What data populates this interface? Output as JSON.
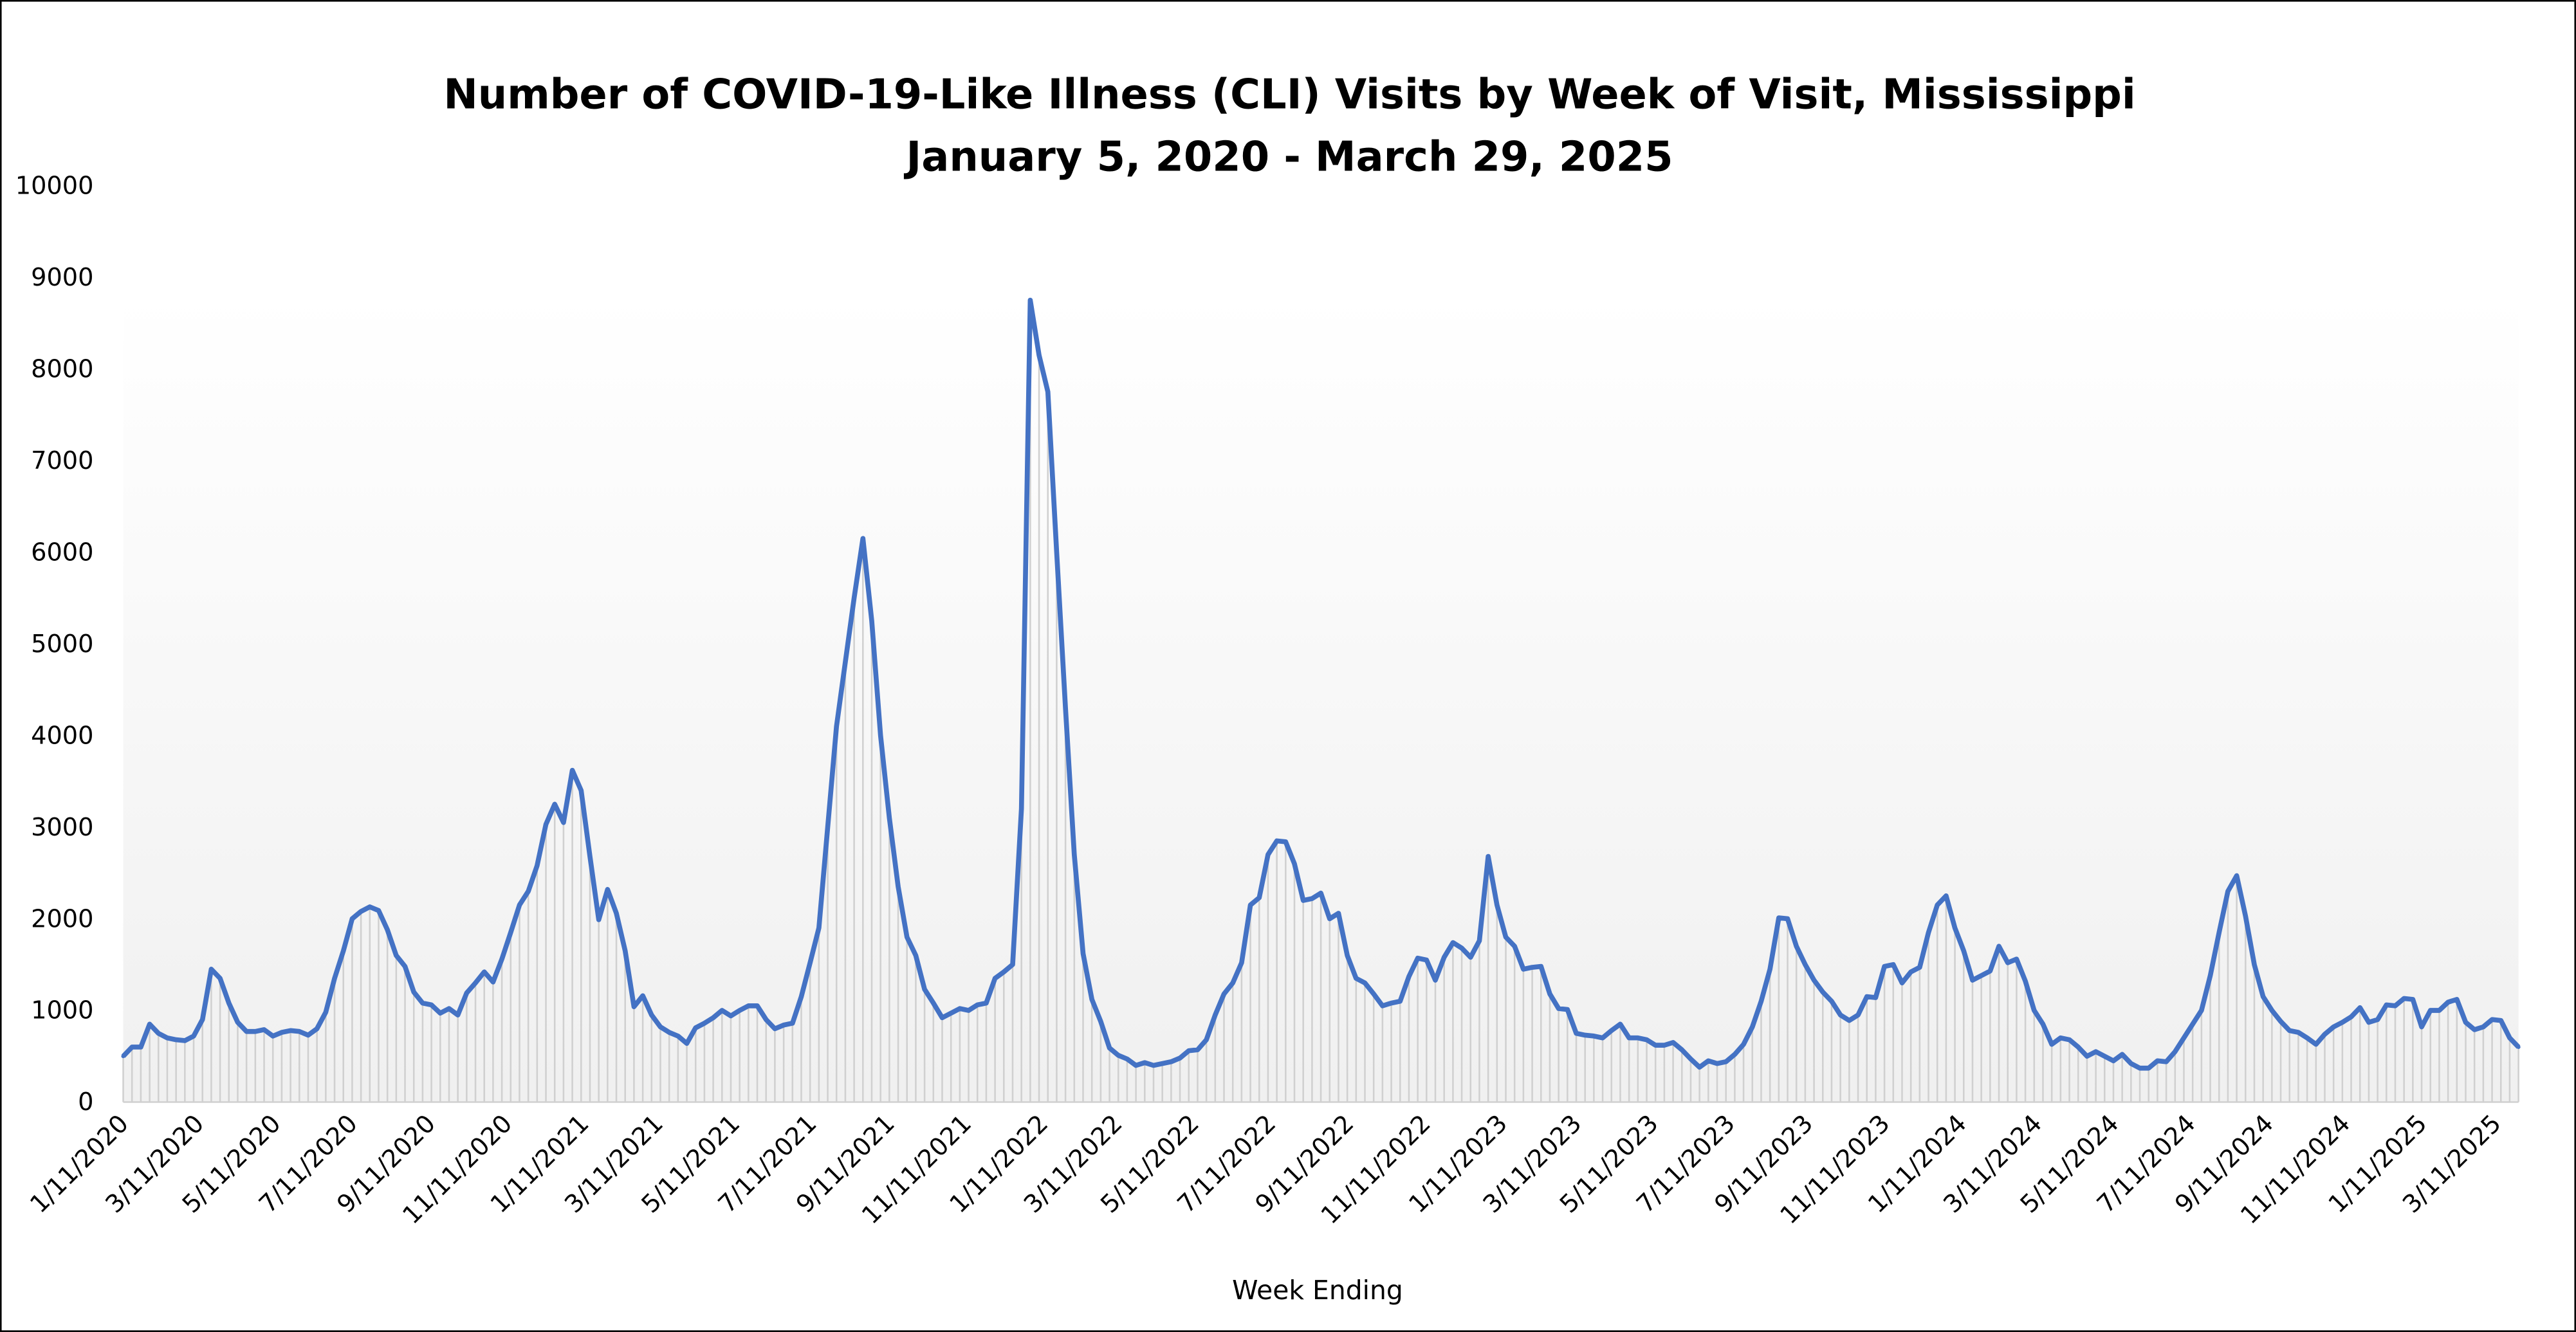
{
  "chart_data": {
    "type": "line",
    "title": "Number of COVID-19-Like Illness (CLI) Visits by Week of Visit, Mississippi",
    "subtitle": "January 5, 2020 - March 29, 2025",
    "xlabel": "Week Ending",
    "ylabel": "",
    "ylim": [
      0,
      10000
    ],
    "yticks": [
      0,
      1000,
      2000,
      3000,
      4000,
      5000,
      6000,
      7000,
      8000,
      9000,
      10000
    ],
    "xtick_labels": [
      "1/11/2020",
      "3/11/2020",
      "5/11/2020",
      "7/11/2020",
      "9/11/2020",
      "11/11/2020",
      "1/11/2021",
      "3/11/2021",
      "5/11/2021",
      "7/11/2021",
      "9/11/2021",
      "11/11/2021",
      "1/11/2022",
      "3/11/2022",
      "5/11/2022",
      "7/11/2022",
      "9/11/2022",
      "11/11/2022",
      "1/11/2023",
      "3/11/2023",
      "5/11/2023",
      "7/11/2023",
      "9/11/2023",
      "11/11/2023",
      "1/11/2024",
      "3/11/2024",
      "5/11/2024",
      "7/11/2024",
      "9/11/2024",
      "11/11/2024",
      "1/11/2025",
      "3/11/2025"
    ],
    "grid": false,
    "legend": "none",
    "drop_lines": true,
    "colors": {
      "line": "#4472c4",
      "drop_lines": "#d0d0d0",
      "plot_bg_top": "#ffffff",
      "plot_bg_bottom": "#f0f0f0"
    },
    "x": [
      "1/11/2020",
      "1/18/2020",
      "1/25/2020",
      "2/1/2020",
      "2/8/2020",
      "2/15/2020",
      "2/22/2020",
      "2/29/2020",
      "3/7/2020",
      "3/14/2020",
      "3/21/2020",
      "3/28/2020",
      "4/4/2020",
      "4/11/2020",
      "4/18/2020",
      "4/25/2020",
      "5/2/2020",
      "5/9/2020",
      "5/16/2020",
      "5/23/2020",
      "5/30/2020",
      "6/6/2020",
      "6/13/2020",
      "6/20/2020",
      "6/27/2020",
      "7/4/2020",
      "7/11/2020",
      "7/18/2020",
      "7/25/2020",
      "8/1/2020",
      "8/8/2020",
      "8/15/2020",
      "8/22/2020",
      "8/29/2020",
      "9/5/2020",
      "9/12/2020",
      "9/19/2020",
      "9/26/2020",
      "10/3/2020",
      "10/10/2020",
      "10/17/2020",
      "10/24/2020",
      "10/31/2020",
      "11/7/2020",
      "11/14/2020",
      "11/21/2020",
      "11/28/2020",
      "12/5/2020",
      "12/12/2020",
      "12/19/2020",
      "12/26/2020",
      "1/2/2021",
      "1/9/2021",
      "1/16/2021",
      "1/23/2021",
      "1/30/2021",
      "2/6/2021",
      "2/13/2021",
      "2/20/2021",
      "2/27/2021",
      "3/6/2021",
      "3/13/2021",
      "3/20/2021",
      "3/27/2021",
      "4/3/2021",
      "4/10/2021",
      "4/17/2021",
      "4/24/2021",
      "5/1/2021",
      "5/8/2021",
      "5/15/2021",
      "5/22/2021",
      "5/29/2021",
      "6/5/2021",
      "6/12/2021",
      "6/19/2021",
      "6/26/2021",
      "7/3/2021",
      "7/10/2021",
      "7/17/2021",
      "7/24/2021",
      "7/31/2021",
      "8/7/2021",
      "8/14/2021",
      "8/21/2021",
      "8/28/2021",
      "9/4/2021",
      "9/11/2021",
      "9/18/2021",
      "9/25/2021",
      "10/2/2021",
      "10/9/2021",
      "10/16/2021",
      "10/23/2021",
      "10/30/2021",
      "11/6/2021",
      "11/13/2021",
      "11/20/2021",
      "11/27/2021",
      "12/4/2021",
      "12/11/2021",
      "12/18/2021",
      "12/25/2021",
      "1/1/2022",
      "1/8/2022",
      "1/15/2022",
      "1/22/2022",
      "1/29/2022",
      "2/5/2022",
      "2/12/2022",
      "2/19/2022",
      "2/26/2022",
      "3/5/2022",
      "3/12/2022",
      "3/19/2022",
      "3/26/2022",
      "4/2/2022",
      "4/9/2022",
      "4/16/2022",
      "4/23/2022",
      "4/30/2022",
      "5/7/2022",
      "5/14/2022",
      "5/21/2022",
      "5/28/2022",
      "6/4/2022",
      "6/11/2022",
      "6/18/2022",
      "6/25/2022",
      "7/2/2022",
      "7/9/2022",
      "7/16/2022",
      "7/23/2022",
      "7/30/2022",
      "8/6/2022",
      "8/13/2022",
      "8/20/2022",
      "8/27/2022",
      "9/3/2022",
      "9/10/2022",
      "9/17/2022",
      "9/24/2022",
      "10/1/2022",
      "10/8/2022",
      "10/15/2022",
      "10/22/2022",
      "10/29/2022",
      "11/5/2022",
      "11/12/2022",
      "11/19/2022",
      "11/26/2022",
      "12/3/2022",
      "12/10/2022",
      "12/17/2022",
      "12/24/2022",
      "12/31/2022",
      "1/7/2023",
      "1/14/2023",
      "1/21/2023",
      "1/28/2023",
      "2/4/2023",
      "2/11/2023",
      "2/18/2023",
      "2/25/2023",
      "3/4/2023",
      "3/11/2023",
      "3/18/2023",
      "3/25/2023",
      "4/1/2023",
      "4/8/2023",
      "4/15/2023",
      "4/22/2023",
      "4/29/2023",
      "5/6/2023",
      "5/13/2023",
      "5/20/2023",
      "5/27/2023",
      "6/3/2023",
      "6/10/2023",
      "6/17/2023",
      "6/24/2023",
      "7/1/2023",
      "7/8/2023",
      "7/15/2023",
      "7/22/2023",
      "7/29/2023",
      "8/5/2023",
      "8/12/2023",
      "8/19/2023",
      "8/26/2023",
      "9/2/2023",
      "9/9/2023",
      "9/16/2023",
      "9/23/2023",
      "9/30/2023",
      "10/7/2023",
      "10/14/2023",
      "10/21/2023",
      "10/28/2023",
      "11/4/2023",
      "11/11/2023",
      "11/18/2023",
      "11/25/2023",
      "12/2/2023",
      "12/9/2023",
      "12/16/2023",
      "12/23/2023",
      "12/30/2023",
      "1/6/2024",
      "1/13/2024",
      "1/20/2024",
      "1/27/2024",
      "2/3/2024",
      "2/10/2024",
      "2/17/2024",
      "2/24/2024",
      "3/2/2024",
      "3/9/2024",
      "3/16/2024",
      "3/23/2024",
      "3/30/2024",
      "4/6/2024",
      "4/13/2024",
      "4/20/2024",
      "4/27/2024",
      "5/4/2024",
      "5/11/2024",
      "5/18/2024",
      "5/25/2024",
      "6/1/2024",
      "6/8/2024",
      "6/15/2024",
      "6/22/2024",
      "6/29/2024",
      "7/6/2024",
      "7/13/2024",
      "7/20/2024",
      "7/27/2024",
      "8/3/2024",
      "8/10/2024",
      "8/17/2024",
      "8/24/2024",
      "8/31/2024",
      "9/7/2024",
      "9/14/2024",
      "9/21/2024",
      "9/28/2024",
      "10/5/2024",
      "10/12/2024",
      "10/19/2024",
      "10/26/2024",
      "11/2/2024",
      "11/9/2024",
      "11/16/2024",
      "11/23/2024",
      "11/30/2024",
      "12/7/2024",
      "12/14/2024",
      "12/21/2024",
      "12/28/2024",
      "1/4/2025",
      "1/11/2025",
      "1/18/2025",
      "1/25/2025",
      "2/1/2025",
      "2/8/2025",
      "2/15/2025",
      "2/22/2025",
      "3/1/2025",
      "3/8/2025",
      "3/15/2025",
      "3/22/2025",
      "3/29/2025"
    ],
    "values": [
      500,
      600,
      600,
      850,
      750,
      700,
      680,
      670,
      720,
      900,
      1450,
      1350,
      1080,
      870,
      770,
      770,
      790,
      720,
      760,
      780,
      770,
      730,
      800,
      980,
      1350,
      1650,
      2000,
      2080,
      2130,
      2090,
      1880,
      1600,
      1480,
      1200,
      1080,
      1060,
      970,
      1020,
      950,
      1190,
      1300,
      1420,
      1310,
      1560,
      1850,
      2150,
      2300,
      2580,
      3030,
      3250,
      3050,
      3620,
      3400,
      2680,
      1990,
      2320,
      2060,
      1650,
      1040,
      1160,
      950,
      820,
      760,
      720,
      640,
      810,
      860,
      920,
      1000,
      940,
      1000,
      1050,
      1050,
      900,
      800,
      840,
      860,
      1150,
      1520,
      1900,
      3000,
      4100,
      4800,
      5500,
      6150,
      5250,
      4000,
      3100,
      2350,
      1800,
      1600,
      1230,
      1080,
      920,
      970,
      1020,
      1000,
      1060,
      1080,
      1350,
      1420,
      1500,
      3200,
      8750,
      8150,
      7750,
      6000,
      4300,
      2700,
      1620,
      1120,
      880,
      590,
      510,
      470,
      400,
      430,
      400,
      420,
      440,
      480,
      560,
      570,
      680,
      950,
      1180,
      1300,
      1520,
      2150,
      2230,
      2700,
      2850,
      2840,
      2600,
      2200,
      2220,
      2280,
      2000,
      2060,
      1600,
      1350,
      1300,
      1180,
      1050,
      1080,
      1100,
      1370,
      1570,
      1550,
      1330,
      1580,
      1740,
      1680,
      1580,
      1760,
      2680,
      2150,
      1800,
      1700,
      1450,
      1470,
      1480,
      1180,
      1020,
      1010,
      750,
      730,
      720,
      700,
      780,
      850,
      700,
      700,
      680,
      620,
      620,
      650,
      570,
      470,
      380,
      450,
      420,
      440,
      520,
      630,
      820,
      1100,
      1450,
      2010,
      2000,
      1700,
      1500,
      1330,
      1200,
      1100,
      950,
      890,
      950,
      1150,
      1140,
      1480,
      1500,
      1300,
      1420,
      1470,
      1850,
      2150,
      2250,
      1900,
      1650,
      1330,
      1380,
      1430,
      1700,
      1520,
      1560,
      1320,
      1000,
      850,
      630,
      700,
      680,
      600,
      500,
      550,
      500,
      450,
      520,
      420,
      370,
      370,
      450,
      440,
      550,
      700,
      850,
      1000,
      1380,
      1850,
      2300,
      2470,
      2030,
      1500,
      1150,
      1000,
      880,
      780,
      760,
      700,
      630,
      740,
      820,
      870,
      930,
      1030,
      870,
      900,
      1060,
      1050,
      1130,
      1120,
      820,
      1000,
      1000,
      1090,
      1120,
      870,
      790,
      820,
      900,
      890,
      700,
      600
    ]
  }
}
